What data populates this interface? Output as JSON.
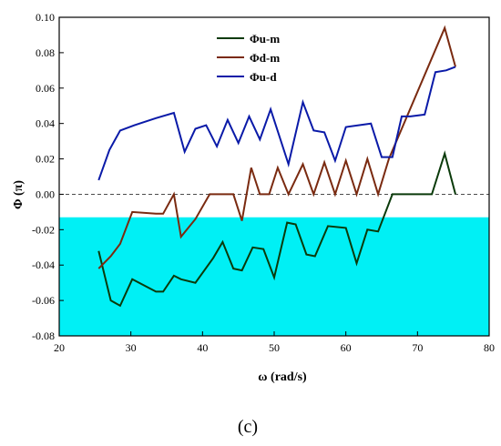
{
  "chart_data": {
    "type": "line",
    "xlabel": "ω (rad/s)",
    "ylabel": "Φ (π)",
    "caption": "(c)",
    "xlim": [
      20,
      80
    ],
    "ylim": [
      -0.08,
      0.1
    ],
    "xticks": [
      20,
      30,
      40,
      50,
      60,
      70,
      80
    ],
    "yticks": [
      -0.08,
      -0.06,
      -0.04,
      -0.02,
      0.0,
      0.02,
      0.04,
      0.06,
      0.08,
      0.1
    ],
    "ytick_labels": [
      "-0.08",
      "-0.06",
      "-0.04",
      "-0.02",
      "0.00",
      "0.02",
      "0.04",
      "0.06",
      "0.08",
      "0.10"
    ],
    "xtick_labels": [
      "20",
      "30",
      "40",
      "50",
      "60",
      "70",
      "80"
    ],
    "reference_line": {
      "y": 0.0,
      "style": "dashed",
      "color": "#333333"
    },
    "lower_region_color": "#00f0f5",
    "legend_position": "top-center",
    "grid": false,
    "series": [
      {
        "name": "Φu-m",
        "color": "#0a3a0a",
        "points": [
          [
            25.5,
            -0.032
          ],
          [
            27.2,
            -0.06
          ],
          [
            28.5,
            -0.063
          ],
          [
            30.2,
            -0.048
          ],
          [
            33.5,
            -0.055
          ],
          [
            34.5,
            -0.055
          ],
          [
            36.0,
            -0.046
          ],
          [
            37.0,
            -0.048
          ],
          [
            39.0,
            -0.05
          ],
          [
            41.5,
            -0.036
          ],
          [
            42.8,
            -0.027
          ],
          [
            44.3,
            -0.042
          ],
          [
            45.5,
            -0.043
          ],
          [
            47.0,
            -0.03
          ],
          [
            48.5,
            -0.031
          ],
          [
            50.0,
            -0.047
          ],
          [
            51.8,
            -0.016
          ],
          [
            53.0,
            -0.017
          ],
          [
            54.5,
            -0.034
          ],
          [
            55.7,
            -0.035
          ],
          [
            57.5,
            -0.018
          ],
          [
            60.0,
            -0.019
          ],
          [
            61.5,
            -0.039
          ],
          [
            63.0,
            -0.02
          ],
          [
            64.5,
            -0.021
          ],
          [
            66.5,
            0.0
          ],
          [
            68.0,
            0.0
          ],
          [
            72.0,
            0.0
          ],
          [
            73.8,
            0.023
          ],
          [
            75.3,
            0.0
          ]
        ]
      },
      {
        "name": "Φd-m",
        "color": "#7a2a10",
        "points": [
          [
            25.5,
            -0.042
          ],
          [
            27.2,
            -0.035
          ],
          [
            28.5,
            -0.028
          ],
          [
            30.2,
            -0.01
          ],
          [
            33.5,
            -0.011
          ],
          [
            34.5,
            -0.011
          ],
          [
            36.0,
            0.0
          ],
          [
            37.0,
            -0.024
          ],
          [
            39.0,
            -0.014
          ],
          [
            41.0,
            0.0
          ],
          [
            44.3,
            0.0
          ],
          [
            45.5,
            -0.015
          ],
          [
            46.8,
            0.015
          ],
          [
            48.0,
            0.0
          ],
          [
            49.3,
            0.0
          ],
          [
            50.5,
            0.015
          ],
          [
            52.0,
            0.0
          ],
          [
            54.0,
            0.017
          ],
          [
            55.5,
            0.0
          ],
          [
            57.0,
            0.018
          ],
          [
            58.5,
            0.0
          ],
          [
            60.0,
            0.019
          ],
          [
            61.5,
            0.0
          ],
          [
            63.0,
            0.02
          ],
          [
            64.5,
            0.0
          ],
          [
            66.0,
            0.02
          ],
          [
            73.8,
            0.094
          ],
          [
            75.3,
            0.072
          ]
        ]
      },
      {
        "name": "Φu-d",
        "color": "#0a1aa8",
        "points": [
          [
            25.5,
            0.008
          ],
          [
            27.0,
            0.025
          ],
          [
            28.5,
            0.036
          ],
          [
            30.5,
            0.039
          ],
          [
            33.5,
            0.043
          ],
          [
            36.0,
            0.046
          ],
          [
            37.5,
            0.024
          ],
          [
            39.0,
            0.037
          ],
          [
            40.5,
            0.039
          ],
          [
            42.0,
            0.027
          ],
          [
            43.5,
            0.042
          ],
          [
            45.0,
            0.029
          ],
          [
            46.5,
            0.044
          ],
          [
            48.0,
            0.031
          ],
          [
            49.5,
            0.048
          ],
          [
            52.0,
            0.017
          ],
          [
            54.0,
            0.052
          ],
          [
            55.5,
            0.036
          ],
          [
            57.0,
            0.035
          ],
          [
            58.5,
            0.019
          ],
          [
            60.0,
            0.038
          ],
          [
            63.5,
            0.04
          ],
          [
            65.0,
            0.021
          ],
          [
            66.5,
            0.021
          ],
          [
            67.8,
            0.044
          ],
          [
            69.0,
            0.044
          ],
          [
            71.0,
            0.045
          ],
          [
            72.5,
            0.069
          ],
          [
            74.0,
            0.07
          ],
          [
            75.3,
            0.072
          ]
        ]
      }
    ]
  }
}
